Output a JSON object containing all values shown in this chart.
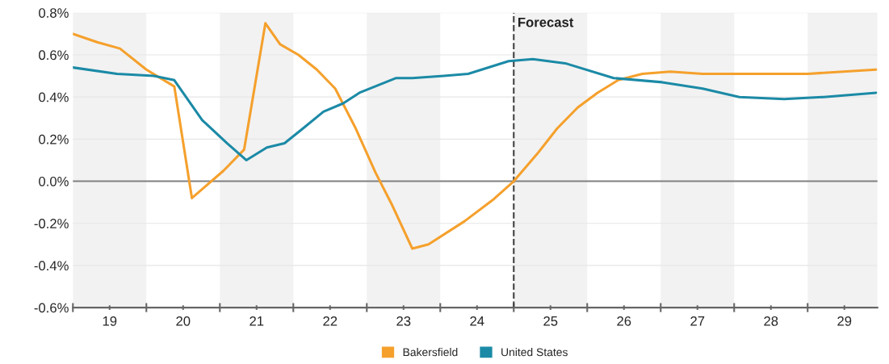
{
  "chart_data": {
    "type": "line",
    "x": [
      19.0,
      19.33,
      19.64,
      20.0,
      20.38,
      20.62,
      21.05,
      21.33,
      21.62,
      21.82,
      22.07,
      22.32,
      22.57,
      22.85,
      23.12,
      23.34,
      23.62,
      23.84,
      24.33,
      24.71,
      25.0,
      25.32,
      25.59,
      25.87,
      26.14,
      26.42,
      26.75,
      27.13,
      27.57,
      28.12,
      29.0,
      29.93
    ],
    "series": [
      {
        "name": "Bakersfield",
        "color": "#f5a02c",
        "values": [
          0.7,
          0.66,
          0.63,
          0.53,
          0.45,
          -0.08,
          0.05,
          0.15,
          0.75,
          0.65,
          0.6,
          0.53,
          0.44,
          0.25,
          0.04,
          -0.11,
          -0.32,
          -0.3,
          -0.19,
          -0.09,
          0.0,
          0.13,
          0.25,
          0.35,
          0.42,
          0.48,
          0.51,
          0.52,
          0.51,
          0.51,
          0.51,
          0.53
        ]
      },
      {
        "name": "United States",
        "color": "#1b8aa6",
        "x": [
          19.0,
          19.6,
          20.1,
          20.38,
          20.76,
          21.1,
          21.36,
          21.64,
          21.88,
          22.13,
          22.41,
          22.68,
          22.9,
          23.4,
          23.62,
          24.05,
          24.38,
          24.93,
          25.26,
          25.7,
          26.36,
          27.02,
          27.57,
          28.07,
          28.68,
          29.22,
          29.93
        ],
        "values": [
          0.54,
          0.51,
          0.5,
          0.48,
          0.29,
          0.18,
          0.1,
          0.16,
          0.18,
          0.25,
          0.33,
          0.37,
          0.42,
          0.49,
          0.49,
          0.5,
          0.51,
          0.57,
          0.58,
          0.56,
          0.49,
          0.47,
          0.44,
          0.4,
          0.39,
          0.4,
          0.42
        ]
      }
    ],
    "xlim": [
      19,
      29.95
    ],
    "xticks": [
      {
        "value": 19,
        "label": null
      },
      {
        "value": 19.5,
        "label": "19"
      },
      {
        "value": 20,
        "label": null
      },
      {
        "value": 20.5,
        "label": "20"
      },
      {
        "value": 21,
        "label": null
      },
      {
        "value": 21.5,
        "label": "21"
      },
      {
        "value": 22,
        "label": null
      },
      {
        "value": 22.5,
        "label": "22"
      },
      {
        "value": 23,
        "label": null
      },
      {
        "value": 23.5,
        "label": "23"
      },
      {
        "value": 24,
        "label": null
      },
      {
        "value": 24.5,
        "label": "24"
      },
      {
        "value": 25,
        "label": null
      },
      {
        "value": 25.5,
        "label": "25"
      },
      {
        "value": 26,
        "label": null
      },
      {
        "value": 26.5,
        "label": "26"
      },
      {
        "value": 27,
        "label": null
      },
      {
        "value": 27.5,
        "label": "27"
      },
      {
        "value": 28,
        "label": null
      },
      {
        "value": 28.5,
        "label": "28"
      },
      {
        "value": 29,
        "label": null
      },
      {
        "value": 29.5,
        "label": "29"
      }
    ],
    "ylim": [
      -0.6,
      0.8
    ],
    "yticks": [
      {
        "value": -0.6,
        "label": "-0.6%"
      },
      {
        "value": -0.4,
        "label": "-0.4%"
      },
      {
        "value": -0.2,
        "label": "-0.2%"
      },
      {
        "value": 0.0,
        "label": "0.0%"
      },
      {
        "value": 0.2,
        "label": "0.2%"
      },
      {
        "value": 0.4,
        "label": "0.4%"
      },
      {
        "value": 0.6,
        "label": "0.6%"
      },
      {
        "value": 0.8,
        "label": "0.8%"
      }
    ],
    "grid": "y",
    "legend": "bottom",
    "ref_lines": [
      {
        "axis": "y",
        "value": 0,
        "color": "#808080",
        "line_style": "solid"
      },
      {
        "axis": "x",
        "value": 25,
        "label": "Forecast",
        "color": "#404040",
        "line_style": "dashed"
      }
    ],
    "bands": [
      {
        "axis": "x",
        "from": 19,
        "to": 20,
        "color": "#f2f2f2"
      },
      {
        "axis": "x",
        "from": 21,
        "to": 22,
        "color": "#f2f2f2"
      },
      {
        "axis": "x",
        "from": 23,
        "to": 24,
        "color": "#f2f2f2"
      },
      {
        "axis": "x",
        "from": 25,
        "to": 26,
        "color": "#f2f2f2"
      },
      {
        "axis": "x",
        "from": 27,
        "to": 28,
        "color": "#f2f2f2"
      },
      {
        "axis": "x",
        "from": 29,
        "to": 29.95,
        "color": "#f2f2f2"
      }
    ]
  }
}
